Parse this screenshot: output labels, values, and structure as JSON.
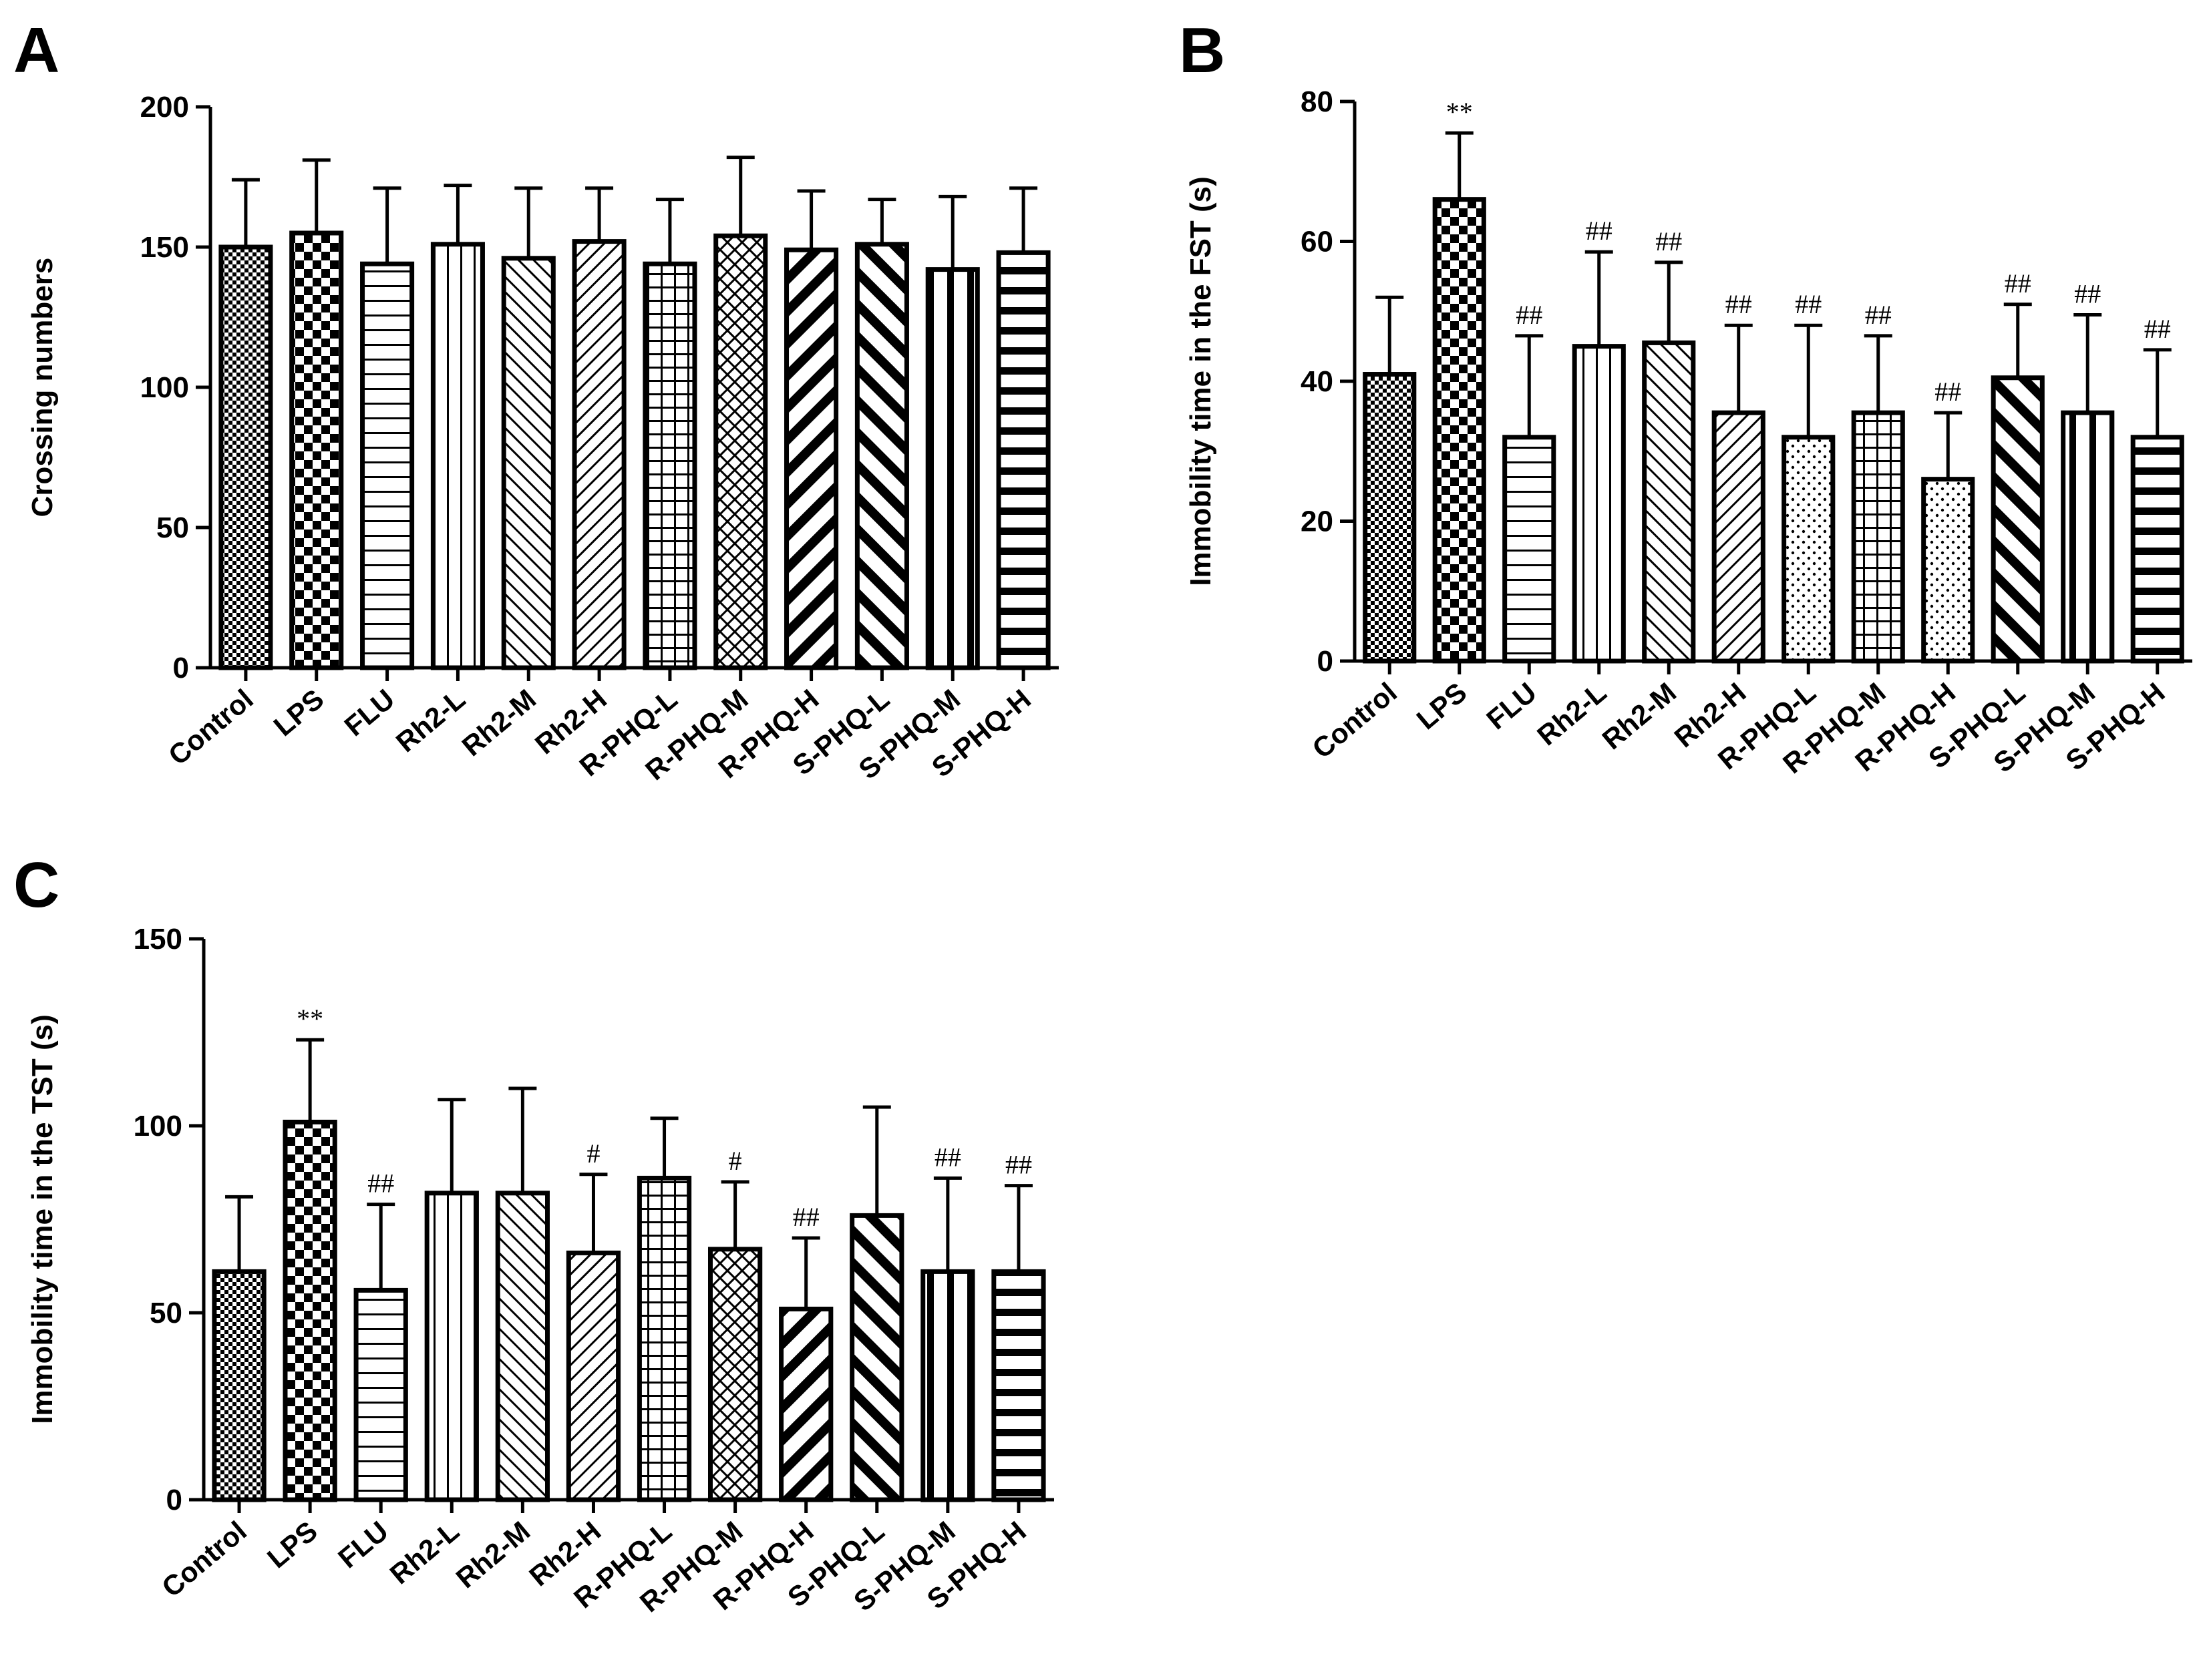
{
  "chart_data": [
    {
      "panel": "A",
      "type": "bar",
      "ylabel": "Crossing numbers",
      "xlabel": "",
      "ylim": [
        0,
        200
      ],
      "yticks": [
        0,
        50,
        100,
        150,
        200
      ],
      "categories": [
        "Control",
        "LPS",
        "FLU",
        "Rh2-L",
        "Rh2-M",
        "Rh2-H",
        "R-PHQ-L",
        "R-PHQ-M",
        "R-PHQ-H",
        "S-PHQ-L",
        "S-PHQ-M",
        "S-PHQ-H"
      ],
      "values": [
        150,
        155,
        144,
        151,
        146,
        152,
        144,
        154,
        149,
        151,
        142,
        148
      ],
      "errors": [
        24,
        26,
        27,
        21,
        25,
        19,
        23,
        28,
        21,
        16,
        26,
        23
      ],
      "annotations": [
        "",
        "",
        "",
        "",
        "",
        "",
        "",
        "",
        "",
        "",
        "",
        ""
      ]
    },
    {
      "panel": "B",
      "type": "bar",
      "ylabel": "Immobility time in the FST (s)",
      "xlabel": "",
      "ylim": [
        0,
        80
      ],
      "yticks": [
        0,
        20,
        40,
        60,
        80
      ],
      "categories": [
        "Control",
        "LPS",
        "FLU",
        "Rh2-L",
        "Rh2-M",
        "Rh2-H",
        "R-PHQ-L",
        "R-PHQ-M",
        "R-PHQ-H",
        "S-PHQ-L",
        "S-PHQ-M",
        "S-PHQ-H"
      ],
      "values": [
        41,
        66,
        32,
        45,
        45.5,
        35.5,
        32,
        35.5,
        26,
        40.5,
        35.5,
        32
      ],
      "errors": [
        11,
        9.5,
        14.5,
        13.5,
        11.5,
        12.5,
        16,
        11,
        9.5,
        10.5,
        14,
        12.5
      ],
      "annotations": [
        "",
        "**",
        "##",
        "##",
        "##",
        "##",
        "##",
        "##",
        "##",
        "##",
        "##",
        "##"
      ]
    },
    {
      "panel": "C",
      "type": "bar",
      "ylabel": "Immobility time in the TST (s)",
      "xlabel": "",
      "ylim": [
        0,
        150
      ],
      "yticks": [
        0,
        50,
        100,
        150
      ],
      "categories": [
        "Control",
        "LPS",
        "FLU",
        "Rh2-L",
        "Rh2-M",
        "Rh2-H",
        "R-PHQ-L",
        "R-PHQ-M",
        "R-PHQ-H",
        "S-PHQ-L",
        "S-PHQ-M",
        "S-PHQ-H"
      ],
      "values": [
        61,
        101,
        56,
        82,
        82,
        66,
        86,
        67,
        51,
        76,
        61,
        61
      ],
      "errors": [
        20,
        22,
        23,
        25,
        28,
        21,
        16,
        18,
        19,
        29,
        25,
        23
      ],
      "annotations": [
        "",
        "**",
        "##",
        "",
        "",
        "#",
        "",
        "#",
        "##",
        "",
        "##",
        "##"
      ]
    }
  ],
  "pattern_names": [
    "checker-fine",
    "checker-large",
    "horizontal-lines",
    "vertical-lines",
    "diagonal-thin",
    "diagonal-back",
    "grid",
    "diamond",
    "diagonal-back-bold",
    "diagonal-bold",
    "vertical-bold",
    "horizontal-bold"
  ],
  "pattern_names_fst": [
    "checker-fine",
    "checker-large",
    "horizontal-lines",
    "vertical-lines",
    "diagonal-thin",
    "diagonal-back",
    "dots",
    "grid",
    "dots",
    "diagonal-bold",
    "vertical-bold",
    "horizontal-bold"
  ]
}
